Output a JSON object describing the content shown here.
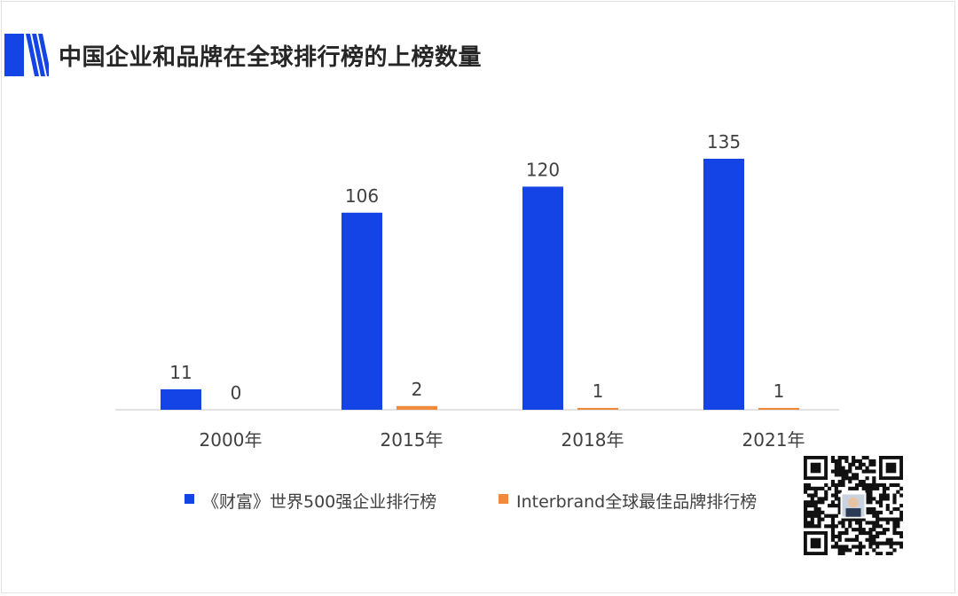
{
  "header": {
    "title": "中国企业和品牌在全球排行榜的上榜数量"
  },
  "colors": {
    "accent": "#1443e6",
    "series1": "#1443e6",
    "series2": "#f08a3c",
    "axis": "#d9d9d9",
    "text": "#404040"
  },
  "legend": [
    {
      "label": "《财富》世界500强企业排行榜"
    },
    {
      "label": "Interbrand全球最佳品牌排行榜"
    }
  ],
  "chart_data": {
    "type": "bar",
    "categories": [
      "2000年",
      "2015年",
      "2018年",
      "2021年"
    ],
    "series": [
      {
        "name": "《财富》世界500强企业排行榜",
        "values": [
          11,
          106,
          120,
          135
        ],
        "color": "#1443e6"
      },
      {
        "name": "Interbrand全球最佳品牌排行榜",
        "values": [
          0,
          2,
          1,
          1
        ],
        "color": "#f08a3c"
      }
    ],
    "data_labels": [
      [
        "11",
        "106",
        "120",
        "135"
      ],
      [
        "0",
        "2",
        "1",
        "1"
      ]
    ],
    "ylim": [
      0,
      150
    ],
    "grid": false,
    "legend_position": "bottom"
  },
  "qr_code": {
    "icon": "qr-code-icon"
  }
}
